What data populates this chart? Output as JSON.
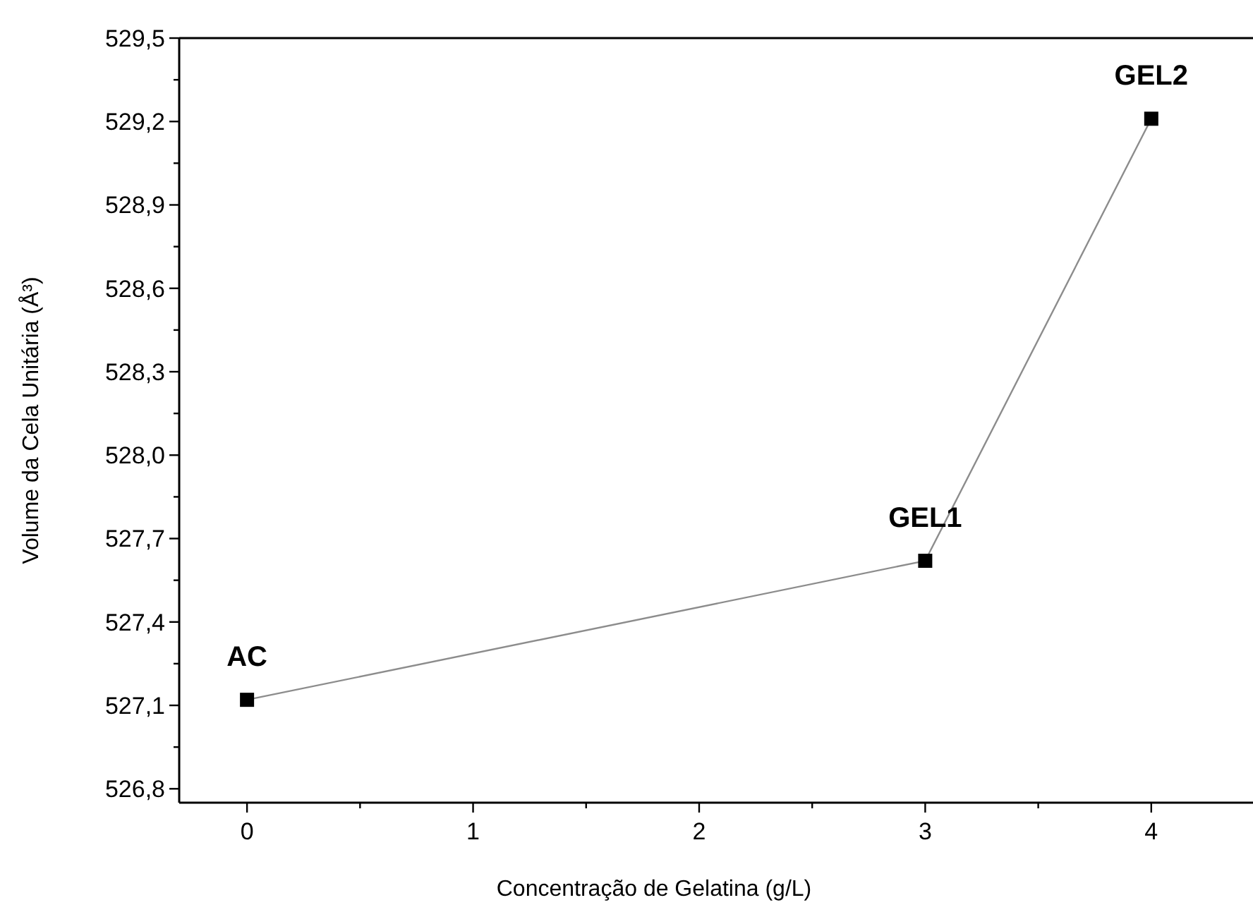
{
  "chart_data": {
    "type": "line",
    "xlabel": "Concentração de Gelatina (g/L)",
    "ylabel": "Volume da Cela Unitária (Å³)",
    "x": [
      0,
      3,
      4
    ],
    "series": [
      {
        "color": "#000000",
        "values": [
          527.12,
          527.62,
          529.21
        ]
      }
    ],
    "marker": "square",
    "xlim": [
      -0.3,
      4.45
    ],
    "xticks": [
      0,
      {
        "value": 0.5,
        "label": null
      },
      1,
      {
        "value": 1.5,
        "label": null
      },
      2,
      {
        "value": 2.5,
        "label": null
      },
      3,
      {
        "value": 3.5,
        "label": null
      },
      4
    ],
    "ylim": [
      526.75,
      529.5
    ],
    "yticks": [
      {
        "value": 526.8,
        "label": "526,8"
      },
      {
        "value": 526.95,
        "label": null
      },
      {
        "value": 527.1,
        "label": "527,1"
      },
      {
        "value": 527.25,
        "label": null
      },
      {
        "value": 527.4,
        "label": "527,4"
      },
      {
        "value": 527.55,
        "label": null
      },
      {
        "value": 527.7,
        "label": "527,7"
      },
      {
        "value": 527.85,
        "label": null
      },
      {
        "value": 528.0,
        "label": "528,0"
      },
      {
        "value": 528.15,
        "label": null
      },
      {
        "value": 528.3,
        "label": "528,3"
      },
      {
        "value": 528.45,
        "label": null
      },
      {
        "value": 528.6,
        "label": "528,6"
      },
      {
        "value": 528.75,
        "label": null
      },
      {
        "value": 528.9,
        "label": "528,9"
      },
      {
        "value": 529.05,
        "label": null
      },
      {
        "value": 529.2,
        "label": "529,2"
      },
      {
        "value": 529.35,
        "label": null
      },
      {
        "value": 529.5,
        "label": "529,5"
      }
    ],
    "annotations": [
      {
        "text": "AC",
        "x": 0,
        "y": 527.12
      },
      {
        "text": "GEL1",
        "x": 3,
        "y": 527.62
      },
      {
        "text": "GEL2",
        "x": 4,
        "y": 529.21
      }
    ],
    "grid": false
  }
}
